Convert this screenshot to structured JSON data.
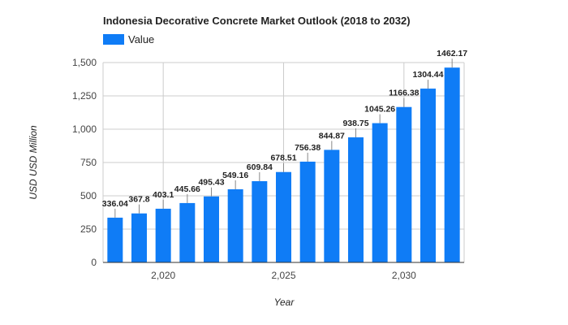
{
  "chart_data": {
    "type": "bar",
    "title": "Indonesia Decorative Concrete Market Outlook (2018 to 2032)",
    "xlabel": "Year",
    "ylabel": "USD USD Million",
    "x": [
      2018,
      2019,
      2020,
      2021,
      2022,
      2023,
      2024,
      2025,
      2026,
      2027,
      2028,
      2029,
      2030,
      2031,
      2032
    ],
    "series": [
      {
        "name": "Value",
        "color": "#0f7cf6",
        "values": [
          336.04,
          367.8,
          403.1,
          445.66,
          495.43,
          549.16,
          609.84,
          678.51,
          756.38,
          844.87,
          938.75,
          1045.26,
          1166.38,
          1304.44,
          1462.17
        ]
      }
    ],
    "data_labels": [
      "336.04",
      "367.8",
      "403.1",
      "445.66",
      "495.43",
      "549.16",
      "609.84",
      "678.51",
      "756.38",
      "844.87",
      "938.75",
      "1045.26",
      "1166.38",
      "1304.44",
      "1462.17"
    ],
    "ylim": [
      0,
      1500
    ],
    "yticks": [
      0,
      250,
      500,
      750,
      1000,
      1250,
      1500
    ],
    "ytick_labels": [
      "0",
      "250",
      "500",
      "750",
      "1,000",
      "1,250",
      "1,500"
    ],
    "xticks": [
      2020,
      2025,
      2030
    ],
    "xtick_labels": [
      "2,020",
      "2,025",
      "2,030"
    ],
    "xlim": [
      2017.5,
      2032.5
    ],
    "grid": true,
    "legend_position": "top-left"
  }
}
